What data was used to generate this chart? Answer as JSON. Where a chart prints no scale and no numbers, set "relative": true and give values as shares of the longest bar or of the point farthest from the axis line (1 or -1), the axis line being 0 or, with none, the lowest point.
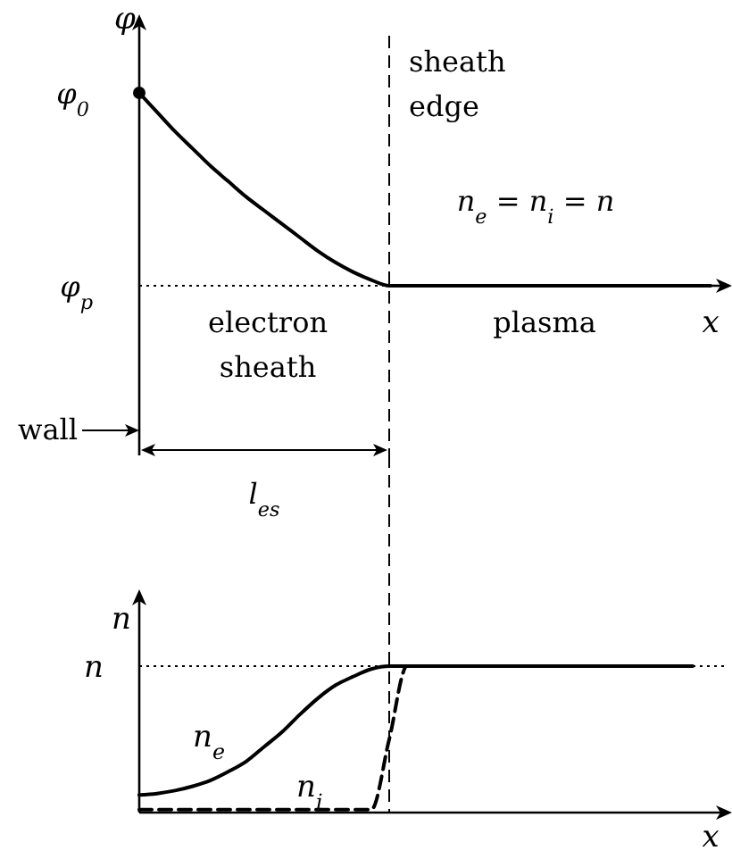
{
  "chart_data": [
    {
      "type": "line",
      "relative": true,
      "ylabel": "φ",
      "xlabel": "x",
      "categories": [
        null,
        null,
        null,
        null,
        null,
        null,
        null,
        null,
        null,
        null,
        null,
        null,
        null,
        null,
        null,
        null,
        null,
        null,
        null,
        null,
        null,
        null,
        null,
        null,
        null,
        null,
        null,
        null,
        null,
        null,
        null,
        null,
        null
      ],
      "series": [
        {
          "color": "#000000",
          "values": [
            1,
            0.9,
            0.8,
            0.71,
            0.62,
            0.54,
            0.46,
            0.39,
            0.32,
            0.25,
            0.18,
            0.12,
            0.07,
            0.03,
            0,
            0,
            0,
            0,
            0,
            0,
            0,
            0,
            0,
            0,
            0,
            0,
            0,
            0,
            0,
            0,
            0,
            0,
            0
          ]
        }
      ],
      "annotations": [
        "φ$_{0}$",
        "n$_{e}$ = n$_{i}$ = n",
        "electron sheath",
        "plasma",
        "wall",
        "l$_{es}$",
        "sheath edge",
        "φ$_{p}$"
      ]
    },
    {
      "type": "line",
      "relative": true,
      "ylabel": "n",
      "xlabel": "x",
      "categories": [
        null,
        null,
        null,
        null,
        null,
        null,
        null,
        null,
        null,
        null,
        null,
        null,
        null,
        null,
        null,
        null,
        null,
        null,
        null,
        null,
        null,
        null,
        null,
        null,
        null,
        null,
        null,
        null,
        null,
        null,
        null,
        null,
        null
      ],
      "series": [
        {
          "name": "n$_{e}$",
          "color": "#000000",
          "line_style": "solid",
          "values": [
            0.12,
            0.13,
            0.15,
            0.18,
            0.22,
            0.28,
            0.35,
            0.45,
            0.55,
            0.67,
            0.78,
            0.87,
            0.93,
            0.98,
            1,
            1,
            1,
            1,
            1,
            1,
            1,
            1,
            1,
            1,
            1,
            1,
            1,
            1,
            1,
            1,
            1,
            1,
            null
          ]
        },
        {
          "name": "n$_{i}$",
          "color": "#000000",
          "line_style": "dashed",
          "values": [
            0.02,
            0.02,
            0.02,
            0.02,
            0.02,
            0.02,
            0.02,
            0.02,
            0.02,
            0.02,
            0.02,
            0.02,
            0.02,
            0.02,
            0.5,
            1,
            1,
            1,
            1,
            1,
            1,
            1,
            1,
            1,
            1,
            1,
            1,
            1,
            1,
            1,
            1,
            1,
            null
          ]
        }
      ],
      "ref_lines": [
        {
          "axis": "y",
          "value": 1,
          "label": "n",
          "line_style": "dotted"
        }
      ]
    }
  ]
}
